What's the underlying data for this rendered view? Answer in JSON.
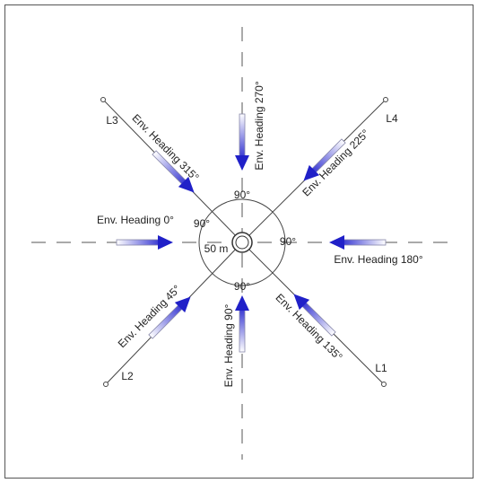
{
  "mooring_lines": [
    {
      "label": "L1"
    },
    {
      "label": "L2"
    },
    {
      "label": "L3"
    },
    {
      "label": "L4"
    }
  ],
  "headings": [
    {
      "label": "Env. Heading 0°"
    },
    {
      "label": "Env. Heading 45°"
    },
    {
      "label": "Env. Heading 90°"
    },
    {
      "label": "Env. Heading 135°"
    },
    {
      "label": "Env. Heading 180°"
    },
    {
      "label": "Env. Heading 225°"
    },
    {
      "label": "Env. Heading 270°"
    },
    {
      "label": "Env. Heading 315°"
    }
  ],
  "angle_labels": [
    "90°",
    "90°",
    "90°",
    "90°"
  ],
  "radius_label": "50 m"
}
